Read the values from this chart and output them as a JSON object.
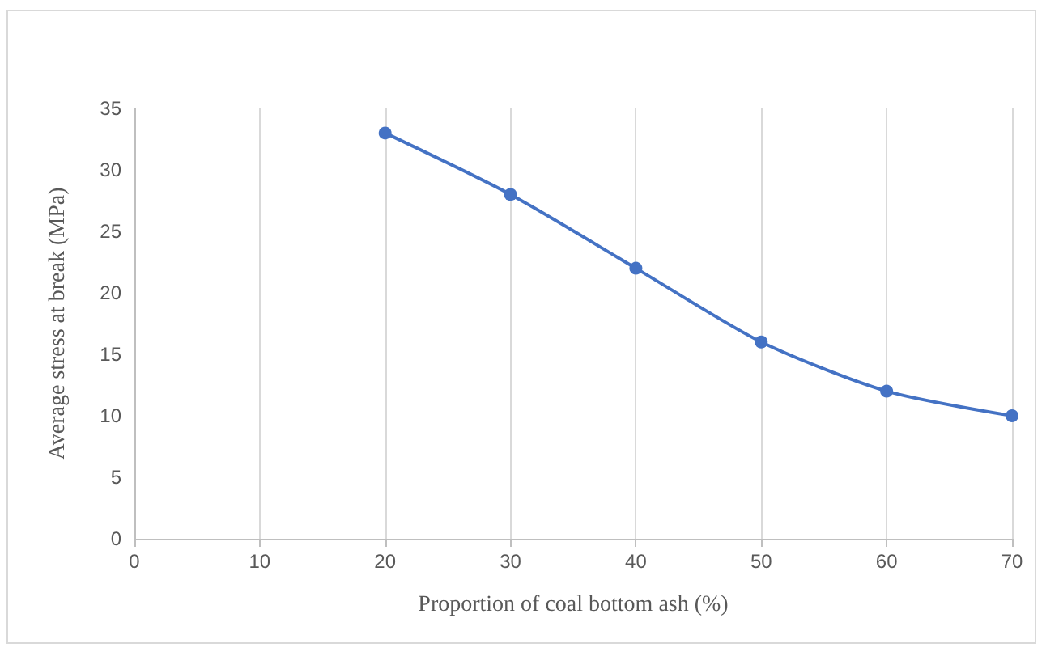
{
  "chart_data": {
    "type": "line",
    "xlabel": "Proportion of coal bottom ash (%)",
    "ylabel": "Average stress at break (MPa)",
    "x": [
      20,
      30,
      40,
      50,
      60,
      70
    ],
    "series": [
      {
        "color": "#4472c4",
        "values": [
          33,
          28,
          22,
          16,
          12,
          10
        ]
      }
    ],
    "xlim": [
      0,
      70
    ],
    "xticks": [
      0,
      10,
      20,
      30,
      40,
      50,
      60,
      70
    ],
    "ylim": [
      0,
      35
    ],
    "yticks": [
      0,
      5,
      10,
      15,
      20,
      25,
      30,
      35
    ],
    "grid": "x",
    "marker": "circle",
    "line_style": "solid"
  }
}
